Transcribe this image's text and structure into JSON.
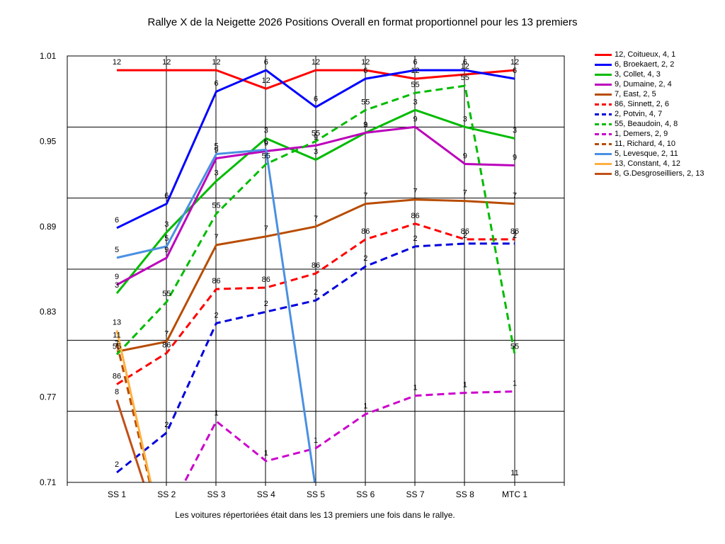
{
  "chart_data": {
    "type": "line",
    "title": "Rallye X de la Neigette 2026  Positions Overall en format proportionnel pour les 13 premiers",
    "footnote": "Les voitures répertoriées était dans les 13 premiers une fois dans le rallye.",
    "categories": [
      "SS 1",
      "SS 2",
      "SS 3",
      "SS 4",
      "SS 5",
      "SS 6",
      "SS 7",
      "SS 8",
      "MTC 1"
    ],
    "y_tick_labels": [
      "1.01",
      "0.95",
      "0.89",
      "0.83",
      "0.77",
      "0.71"
    ],
    "ylim": [
      0.71,
      1.01
    ],
    "grid": true,
    "legend_position": "right",
    "series": [
      {
        "name": "12, Coitueux, 4, 1",
        "label": "12",
        "color": "#ff0000",
        "dashed": false,
        "values": [
          1.0,
          1.0,
          1.0,
          0.987,
          1.0,
          1.0,
          0.994,
          0.997,
          1.0
        ]
      },
      {
        "name": "6, Broekaert, 2, 2",
        "label": "6",
        "color": "#0000ff",
        "dashed": false,
        "values": [
          0.889,
          0.906,
          0.985,
          1.0,
          0.974,
          0.994,
          1.0,
          1.0,
          0.994
        ]
      },
      {
        "name": "3, Collet, 4, 3",
        "label": "3",
        "color": "#00bb00",
        "dashed": false,
        "values": [
          0.843,
          0.886,
          0.922,
          0.952,
          0.937,
          0.956,
          0.972,
          0.96,
          0.952
        ]
      },
      {
        "name": "9, Dumaine, 2, 4",
        "label": "9",
        "color": "#bb00bb",
        "dashed": false,
        "values": [
          0.849,
          0.868,
          0.938,
          0.943,
          0.947,
          0.956,
          0.96,
          0.934,
          0.933
        ]
      },
      {
        "name": "7, East, 2, 5",
        "label": "7",
        "color": "#b84c00",
        "dashed": false,
        "values": [
          0.802,
          0.809,
          0.877,
          0.883,
          0.89,
          0.906,
          0.909,
          0.908,
          0.906
        ]
      },
      {
        "name": "86, Sinnett, 2, 6",
        "label": "86",
        "color": "#ff0000",
        "dashed": true,
        "values": [
          0.779,
          0.801,
          0.846,
          0.847,
          0.857,
          0.881,
          0.892,
          0.881,
          0.881
        ]
      },
      {
        "name": "2, Potvin, 4, 7",
        "label": "2",
        "color": "#0000dd",
        "dashed": true,
        "values": [
          0.717,
          0.745,
          0.822,
          0.83,
          0.838,
          0.862,
          0.876,
          0.878,
          0.878
        ]
      },
      {
        "name": "55, Beaudoin, 4, 8",
        "label": "55",
        "color": "#00bb00",
        "dashed": true,
        "values": [
          0.8,
          0.837,
          0.899,
          0.934,
          0.95,
          0.972,
          0.984,
          0.989,
          0.8
        ]
      },
      {
        "name": "1, Demers, 2, 9",
        "label": "1",
        "color": "#cc00cc",
        "dashed": true,
        "values": [
          0.682,
          0.686,
          0.753,
          0.725,
          0.734,
          0.758,
          0.771,
          0.773,
          0.774
        ]
      },
      {
        "name": "11, Richard, 4, 10",
        "label": "11",
        "color": "#b84c00",
        "dashed": true,
        "values": [
          0.808,
          0.66,
          null,
          null,
          null,
          null,
          null,
          null,
          0.711
        ]
      },
      {
        "name": "5, Levesque, 2, 11",
        "label": "5",
        "color": "#4a90e2",
        "dashed": false,
        "values": [
          0.868,
          0.876,
          0.941,
          0.944,
          0.705,
          null,
          null,
          null,
          null
        ]
      },
      {
        "name": "13, Constant, 4, 12",
        "label": "13",
        "color": "#ffb040",
        "dashed": false,
        "values": [
          0.817,
          0.66,
          null,
          null,
          null,
          null,
          null,
          null,
          null
        ]
      },
      {
        "name": "8, G.Desgroseilliers, 2, 13",
        "label": "8",
        "color": "#c05018",
        "dashed": false,
        "values": [
          0.768,
          0.66,
          null,
          null,
          null,
          null,
          null,
          null,
          null
        ]
      }
    ]
  }
}
